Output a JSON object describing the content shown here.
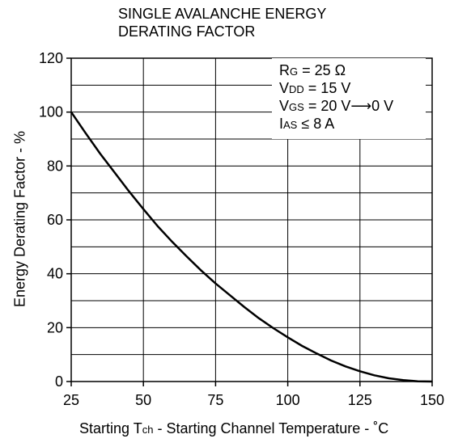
{
  "chart_data": {
    "type": "line",
    "title": [
      "SINGLE AVALANCHE ENERGY",
      "DERATING FACTOR"
    ],
    "xlabel": {
      "pre": "Starting T",
      "sub": "ch",
      "post": "  - Starting Channel Temperature - ˚C"
    },
    "ylabel": "Energy Derating Factor - %",
    "xlim": [
      25,
      150
    ],
    "ylim": [
      0,
      120
    ],
    "xticks": [
      25,
      50,
      75,
      100,
      125,
      150
    ],
    "yticks": [
      0,
      20,
      40,
      60,
      80,
      100,
      120
    ],
    "grid": true,
    "legend_position": "top-right",
    "conditions": [
      {
        "sym": "R",
        "sub": "G",
        "rest": " = 25 Ω"
      },
      {
        "sym": "V",
        "sub": "DD",
        "rest": " = 15 V"
      },
      {
        "sym": "V",
        "sub": "GS",
        "rest": " = 20 V⟶0 V"
      },
      {
        "sym": "I",
        "sub": "AS",
        "rest": " ≤ 8 A"
      }
    ],
    "series": [
      {
        "x": [
          25,
          30,
          35,
          40,
          45,
          50,
          55,
          60,
          65,
          70,
          75,
          80,
          85,
          90,
          95,
          100,
          105,
          110,
          115,
          120,
          125,
          130,
          135,
          140,
          145,
          150
        ],
        "y": [
          100,
          92.2,
          84.6,
          77.6,
          70.6,
          64.0,
          57.6,
          51.8,
          46.4,
          41.2,
          36.4,
          32.0,
          27.6,
          23.5,
          19.8,
          16.4,
          13.2,
          10.4,
          7.8,
          5.6,
          3.8,
          2.3,
          1.2,
          0.5,
          0.1,
          0
        ]
      }
    ]
  }
}
